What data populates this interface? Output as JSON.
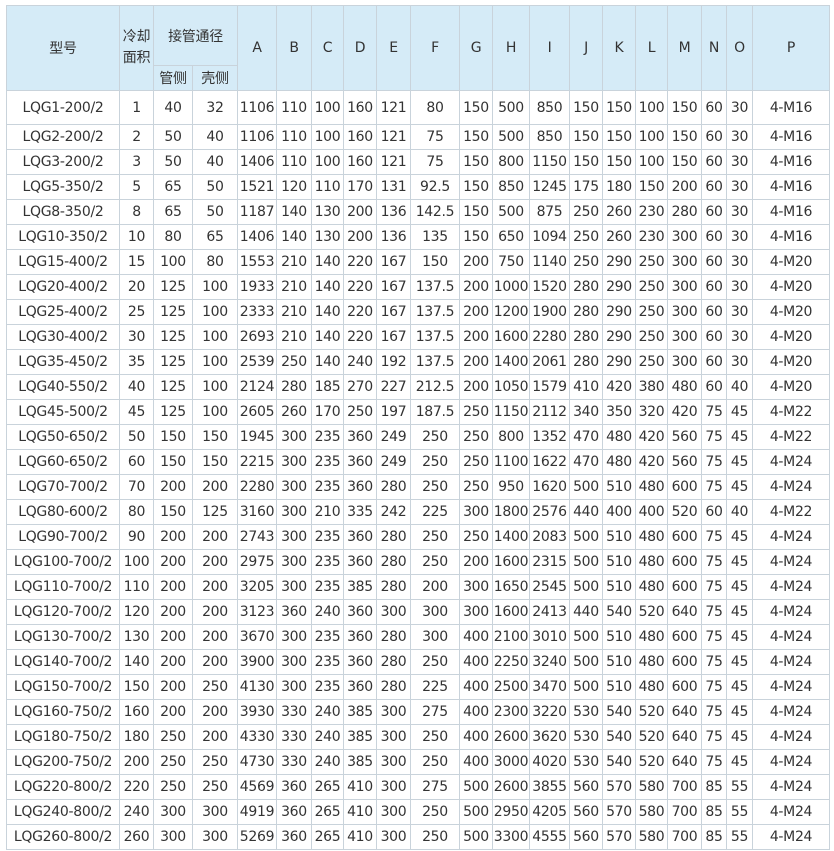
{
  "table": {
    "headers": {
      "model": "型号",
      "area": "冷却面积",
      "pipe_group": "接管通径",
      "tube_side": "管侧",
      "shell_side": "壳侧",
      "dims": [
        "A",
        "B",
        "C",
        "D",
        "E",
        "F",
        "G",
        "H",
        "I",
        "J",
        "K",
        "L",
        "M",
        "N",
        "O",
        "P"
      ]
    },
    "rows": [
      [
        "LQG1-200/2",
        "1",
        "40",
        "32",
        "1106",
        "110",
        "100",
        "160",
        "121",
        "80",
        "150",
        "500",
        "850",
        "150",
        "150",
        "100",
        "150",
        "60",
        "30",
        "4-M16"
      ],
      [
        "LQG2-200/2",
        "2",
        "50",
        "40",
        "1106",
        "110",
        "100",
        "160",
        "121",
        "75",
        "150",
        "500",
        "850",
        "150",
        "150",
        "100",
        "150",
        "60",
        "30",
        "4-M16"
      ],
      [
        "LQG3-200/2",
        "3",
        "50",
        "40",
        "1406",
        "110",
        "100",
        "160",
        "121",
        "75",
        "150",
        "800",
        "1150",
        "150",
        "150",
        "100",
        "150",
        "60",
        "30",
        "4-M16"
      ],
      [
        "LQG5-350/2",
        "5",
        "65",
        "50",
        "1521",
        "120",
        "110",
        "170",
        "131",
        "92.5",
        "150",
        "850",
        "1245",
        "175",
        "180",
        "150",
        "200",
        "60",
        "30",
        "4-M16"
      ],
      [
        "LQG8-350/2",
        "8",
        "65",
        "50",
        "1187",
        "140",
        "130",
        "200",
        "136",
        "142.5",
        "150",
        "500",
        "875",
        "250",
        "260",
        "230",
        "280",
        "60",
        "30",
        "4-M16"
      ],
      [
        "LQG10-350/2",
        "10",
        "80",
        "65",
        "1406",
        "140",
        "130",
        "200",
        "136",
        "135",
        "150",
        "650",
        "1094",
        "250",
        "260",
        "230",
        "300",
        "60",
        "30",
        "4-M16"
      ],
      [
        "LQG15-400/2",
        "15",
        "100",
        "80",
        "1553",
        "210",
        "140",
        "220",
        "167",
        "150",
        "200",
        "750",
        "1140",
        "250",
        "290",
        "250",
        "300",
        "60",
        "30",
        "4-M20"
      ],
      [
        "LQG20-400/2",
        "20",
        "125",
        "100",
        "1933",
        "210",
        "140",
        "220",
        "167",
        "137.5",
        "200",
        "1000",
        "1520",
        "280",
        "290",
        "250",
        "300",
        "60",
        "30",
        "4-M20"
      ],
      [
        "LQG25-400/2",
        "25",
        "125",
        "100",
        "2333",
        "210",
        "140",
        "220",
        "167",
        "137.5",
        "200",
        "1200",
        "1900",
        "280",
        "290",
        "250",
        "300",
        "60",
        "30",
        "4-M20"
      ],
      [
        "LQG30-400/2",
        "30",
        "125",
        "100",
        "2693",
        "210",
        "140",
        "220",
        "167",
        "137.5",
        "200",
        "1600",
        "2280",
        "280",
        "290",
        "250",
        "300",
        "60",
        "30",
        "4-M20"
      ],
      [
        "LQG35-450/2",
        "35",
        "125",
        "100",
        "2539",
        "250",
        "140",
        "240",
        "192",
        "137.5",
        "200",
        "1400",
        "2061",
        "280",
        "290",
        "250",
        "300",
        "60",
        "30",
        "4-M20"
      ],
      [
        "LQG40-550/2",
        "40",
        "125",
        "100",
        "2124",
        "280",
        "185",
        "270",
        "227",
        "212.5",
        "200",
        "1050",
        "1579",
        "410",
        "420",
        "380",
        "480",
        "60",
        "40",
        "4-M20"
      ],
      [
        "LQG45-500/2",
        "45",
        "125",
        "100",
        "2605",
        "260",
        "170",
        "250",
        "197",
        "187.5",
        "250",
        "1150",
        "2112",
        "340",
        "350",
        "320",
        "420",
        "75",
        "45",
        "4-M22"
      ],
      [
        "LQG50-650/2",
        "50",
        "150",
        "150",
        "1945",
        "300",
        "235",
        "360",
        "249",
        "250",
        "250",
        "800",
        "1352",
        "470",
        "480",
        "420",
        "560",
        "75",
        "45",
        "4-M22"
      ],
      [
        "LQG60-650/2",
        "60",
        "150",
        "150",
        "2215",
        "300",
        "235",
        "360",
        "249",
        "250",
        "250",
        "1100",
        "1622",
        "470",
        "480",
        "420",
        "560",
        "75",
        "45",
        "4-M24"
      ],
      [
        "LQG70-700/2",
        "70",
        "200",
        "200",
        "2280",
        "300",
        "235",
        "360",
        "280",
        "250",
        "250",
        "950",
        "1620",
        "500",
        "510",
        "480",
        "600",
        "75",
        "45",
        "4-M24"
      ],
      [
        "LQG80-600/2",
        "80",
        "150",
        "125",
        "3160",
        "300",
        "210",
        "335",
        "242",
        "225",
        "300",
        "1800",
        "2576",
        "440",
        "400",
        "400",
        "520",
        "60",
        "40",
        "4-M22"
      ],
      [
        "LQG90-700/2",
        "90",
        "200",
        "200",
        "2743",
        "300",
        "235",
        "360",
        "280",
        "250",
        "250",
        "1400",
        "2083",
        "500",
        "510",
        "480",
        "600",
        "75",
        "45",
        "4-M24"
      ],
      [
        "LQG100-700/2",
        "100",
        "200",
        "200",
        "2975",
        "300",
        "235",
        "360",
        "280",
        "250",
        "200",
        "1600",
        "2315",
        "500",
        "510",
        "480",
        "600",
        "75",
        "45",
        "4-M24"
      ],
      [
        "LQG110-700/2",
        "110",
        "200",
        "200",
        "3205",
        "300",
        "235",
        "385",
        "280",
        "200",
        "300",
        "1650",
        "2545",
        "500",
        "510",
        "480",
        "600",
        "75",
        "45",
        "4-M24"
      ],
      [
        "LQG120-700/2",
        "120",
        "200",
        "200",
        "3123",
        "360",
        "240",
        "360",
        "300",
        "300",
        "300",
        "1600",
        "2413",
        "440",
        "540",
        "520",
        "640",
        "75",
        "45",
        "4-M24"
      ],
      [
        "LQG130-700/2",
        "130",
        "200",
        "200",
        "3670",
        "300",
        "235",
        "360",
        "280",
        "300",
        "400",
        "2100",
        "3010",
        "500",
        "510",
        "480",
        "600",
        "75",
        "45",
        "4-M24"
      ],
      [
        "LQG140-700/2",
        "140",
        "200",
        "200",
        "3900",
        "300",
        "235",
        "360",
        "280",
        "250",
        "400",
        "2250",
        "3240",
        "500",
        "510",
        "480",
        "600",
        "75",
        "45",
        "4-M24"
      ],
      [
        "LQG150-700/2",
        "150",
        "200",
        "250",
        "4130",
        "300",
        "235",
        "360",
        "280",
        "225",
        "400",
        "2500",
        "3470",
        "500",
        "510",
        "480",
        "600",
        "75",
        "45",
        "4-M24"
      ],
      [
        "LQG160-750/2",
        "160",
        "200",
        "200",
        "3930",
        "330",
        "240",
        "385",
        "300",
        "275",
        "400",
        "2300",
        "3220",
        "530",
        "540",
        "520",
        "640",
        "75",
        "45",
        "4-M24"
      ],
      [
        "LQG180-750/2",
        "180",
        "250",
        "200",
        "4330",
        "330",
        "240",
        "385",
        "300",
        "250",
        "400",
        "2600",
        "3620",
        "530",
        "540",
        "520",
        "640",
        "75",
        "45",
        "4-M24"
      ],
      [
        "LQG200-750/2",
        "200",
        "250",
        "250",
        "4730",
        "330",
        "240",
        "385",
        "300",
        "250",
        "400",
        "3000",
        "4020",
        "530",
        "540",
        "520",
        "640",
        "75",
        "45",
        "4-M24"
      ],
      [
        "LQG220-800/2",
        "220",
        "250",
        "250",
        "4569",
        "360",
        "265",
        "410",
        "300",
        "275",
        "500",
        "2600",
        "3855",
        "560",
        "570",
        "580",
        "700",
        "85",
        "55",
        "4-M24"
      ],
      [
        "LQG240-800/2",
        "240",
        "300",
        "300",
        "4919",
        "360",
        "265",
        "410",
        "300",
        "250",
        "500",
        "2950",
        "4205",
        "560",
        "570",
        "580",
        "700",
        "85",
        "55",
        "4-M24"
      ],
      [
        "LQG260-800/2",
        "260",
        "300",
        "300",
        "5269",
        "360",
        "265",
        "410",
        "300",
        "250",
        "500",
        "3300",
        "4555",
        "560",
        "570",
        "580",
        "700",
        "85",
        "55",
        "4-M24"
      ]
    ],
    "colors": {
      "header_bg": "#d5ebf7",
      "border": "#c9d3db",
      "text": "#333333"
    }
  }
}
